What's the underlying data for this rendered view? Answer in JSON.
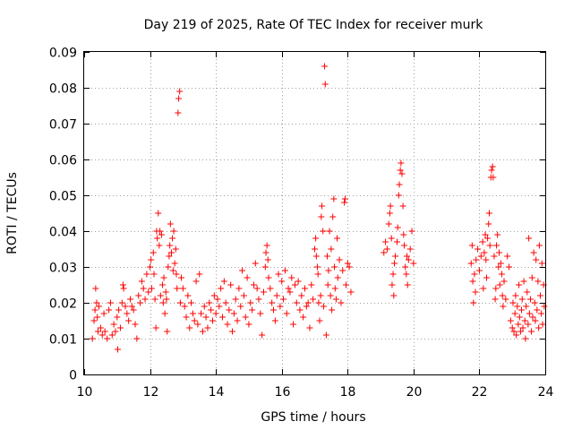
{
  "chart_data": {
    "type": "scatter",
    "title": "Day 219 of 2025, Rate Of TEC Index for receiver murk",
    "xlabel": "GPS time / hours",
    "ylabel": "ROTI / TECUs",
    "xlim": [
      10,
      24
    ],
    "ylim": [
      0,
      0.09
    ],
    "xticks": [
      10,
      12,
      14,
      16,
      18,
      20,
      22,
      24
    ],
    "xtick_labels": [
      "10",
      "12",
      "14",
      "16",
      "18",
      "20",
      "22",
      "24"
    ],
    "yticks": [
      0,
      0.01,
      0.02,
      0.03,
      0.04,
      0.05,
      0.06,
      0.07,
      0.08,
      0.09
    ],
    "ytick_labels": [
      "0",
      "0.01",
      "0.02",
      "0.03",
      "0.04",
      "0.05",
      "0.06",
      "0.07",
      "0.08",
      "0.09"
    ],
    "grid": true,
    "marker": "plus",
    "color": "#ff0000",
    "series": [
      {
        "points": [
          [
            10.25,
            0.01
          ],
          [
            10.3,
            0.015
          ],
          [
            10.33,
            0.018
          ],
          [
            10.35,
            0.024
          ],
          [
            10.38,
            0.02
          ],
          [
            10.4,
            0.016
          ],
          [
            10.42,
            0.012
          ],
          [
            10.45,
            0.019
          ],
          [
            10.5,
            0.013
          ],
          [
            10.55,
            0.011
          ],
          [
            10.6,
            0.017
          ],
          [
            10.63,
            0.012
          ],
          [
            10.7,
            0.01
          ],
          [
            10.75,
            0.018
          ],
          [
            10.8,
            0.02
          ],
          [
            10.85,
            0.011
          ],
          [
            10.9,
            0.014
          ],
          [
            10.95,
            0.012
          ],
          [
            11.0,
            0.016
          ],
          [
            11.02,
            0.007
          ],
          [
            11.05,
            0.018
          ],
          [
            11.1,
            0.013
          ],
          [
            11.15,
            0.02
          ],
          [
            11.18,
            0.025
          ],
          [
            11.2,
            0.024
          ],
          [
            11.25,
            0.019
          ],
          [
            11.3,
            0.017
          ],
          [
            11.35,
            0.015
          ],
          [
            11.4,
            0.021
          ],
          [
            11.45,
            0.019
          ],
          [
            11.5,
            0.018
          ],
          [
            11.55,
            0.014
          ],
          [
            11.6,
            0.01
          ],
          [
            11.65,
            0.022
          ],
          [
            11.7,
            0.02
          ],
          [
            11.75,
            0.026
          ],
          [
            11.8,
            0.024
          ],
          [
            11.85,
            0.021
          ],
          [
            11.9,
            0.028
          ],
          [
            11.95,
            0.023
          ],
          [
            12.0,
            0.03
          ],
          [
            12.03,
            0.032
          ],
          [
            12.05,
            0.024
          ],
          [
            12.1,
            0.034
          ],
          [
            12.12,
            0.028
          ],
          [
            12.15,
            0.021
          ],
          [
            12.18,
            0.013
          ],
          [
            12.2,
            0.04
          ],
          [
            12.22,
            0.038
          ],
          [
            12.25,
            0.045
          ],
          [
            12.28,
            0.036
          ],
          [
            12.3,
            0.04
          ],
          [
            12.32,
            0.022
          ],
          [
            12.35,
            0.039
          ],
          [
            12.38,
            0.025
          ],
          [
            12.4,
            0.02
          ],
          [
            12.42,
            0.027
          ],
          [
            12.45,
            0.017
          ],
          [
            12.48,
            0.023
          ],
          [
            12.5,
            0.021
          ],
          [
            12.52,
            0.012
          ],
          [
            12.55,
            0.03
          ],
          [
            12.58,
            0.033
          ],
          [
            12.6,
            0.036
          ],
          [
            12.62,
            0.042
          ],
          [
            12.65,
            0.034
          ],
          [
            12.68,
            0.038
          ],
          [
            12.7,
            0.029
          ],
          [
            12.72,
            0.04
          ],
          [
            12.75,
            0.031
          ],
          [
            12.78,
            0.035
          ],
          [
            12.8,
            0.028
          ],
          [
            12.82,
            0.024
          ],
          [
            12.85,
            0.073
          ],
          [
            12.87,
            0.077
          ],
          [
            12.9,
            0.079
          ],
          [
            12.92,
            0.02
          ],
          [
            12.95,
            0.027
          ],
          [
            13.0,
            0.024
          ],
          [
            13.05,
            0.019
          ],
          [
            13.1,
            0.016
          ],
          [
            13.15,
            0.022
          ],
          [
            13.2,
            0.013
          ],
          [
            13.25,
            0.02
          ],
          [
            13.3,
            0.017
          ],
          [
            13.35,
            0.015
          ],
          [
            13.4,
            0.026
          ],
          [
            13.45,
            0.014
          ],
          [
            13.5,
            0.028
          ],
          [
            13.55,
            0.017
          ],
          [
            13.6,
            0.012
          ],
          [
            13.65,
            0.019
          ],
          [
            13.7,
            0.016
          ],
          [
            13.75,
            0.013
          ],
          [
            13.8,
            0.02
          ],
          [
            13.85,
            0.018
          ],
          [
            13.9,
            0.015
          ],
          [
            13.95,
            0.022
          ],
          [
            14.0,
            0.017
          ],
          [
            14.05,
            0.021
          ],
          [
            14.1,
            0.019
          ],
          [
            14.15,
            0.024
          ],
          [
            14.2,
            0.016
          ],
          [
            14.25,
            0.026
          ],
          [
            14.3,
            0.02
          ],
          [
            14.35,
            0.014
          ],
          [
            14.4,
            0.018
          ],
          [
            14.45,
            0.025
          ],
          [
            14.5,
            0.012
          ],
          [
            14.55,
            0.017
          ],
          [
            14.6,
            0.021
          ],
          [
            14.65,
            0.015
          ],
          [
            14.7,
            0.024
          ],
          [
            14.75,
            0.019
          ],
          [
            14.8,
            0.029
          ],
          [
            14.85,
            0.022
          ],
          [
            14.9,
            0.016
          ],
          [
            14.95,
            0.027
          ],
          [
            15.0,
            0.014
          ],
          [
            15.05,
            0.02
          ],
          [
            15.1,
            0.018
          ],
          [
            15.15,
            0.025
          ],
          [
            15.2,
            0.031
          ],
          [
            15.25,
            0.024
          ],
          [
            15.3,
            0.021
          ],
          [
            15.35,
            0.017
          ],
          [
            15.4,
            0.011
          ],
          [
            15.45,
            0.023
          ],
          [
            15.5,
            0.03
          ],
          [
            15.52,
            0.034
          ],
          [
            15.55,
            0.036
          ],
          [
            15.58,
            0.032
          ],
          [
            15.6,
            0.027
          ],
          [
            15.65,
            0.024
          ],
          [
            15.7,
            0.02
          ],
          [
            15.75,
            0.018
          ],
          [
            15.8,
            0.015
          ],
          [
            15.85,
            0.022
          ],
          [
            15.9,
            0.028
          ],
          [
            15.95,
            0.019
          ],
          [
            16.0,
            0.026
          ],
          [
            16.05,
            0.021
          ],
          [
            16.1,
            0.029
          ],
          [
            16.15,
            0.017
          ],
          [
            16.2,
            0.024
          ],
          [
            16.25,
            0.023
          ],
          [
            16.3,
            0.027
          ],
          [
            16.35,
            0.014
          ],
          [
            16.4,
            0.025
          ],
          [
            16.45,
            0.02
          ],
          [
            16.5,
            0.026
          ],
          [
            16.55,
            0.018
          ],
          [
            16.6,
            0.022
          ],
          [
            16.65,
            0.016
          ],
          [
            16.7,
            0.024
          ],
          [
            16.75,
            0.019
          ],
          [
            16.8,
            0.02
          ],
          [
            16.85,
            0.013
          ],
          [
            16.9,
            0.025
          ],
          [
            16.95,
            0.021
          ],
          [
            17.0,
            0.035
          ],
          [
            17.03,
            0.038
          ],
          [
            17.05,
            0.033
          ],
          [
            17.08,
            0.03
          ],
          [
            17.1,
            0.028
          ],
          [
            17.12,
            0.02
          ],
          [
            17.15,
            0.015
          ],
          [
            17.18,
            0.022
          ],
          [
            17.2,
            0.044
          ],
          [
            17.22,
            0.047
          ],
          [
            17.25,
            0.04
          ],
          [
            17.27,
            0.019
          ],
          [
            17.3,
            0.086
          ],
          [
            17.32,
            0.081
          ],
          [
            17.35,
            0.011
          ],
          [
            17.38,
            0.033
          ],
          [
            17.4,
            0.025
          ],
          [
            17.42,
            0.029
          ],
          [
            17.45,
            0.04
          ],
          [
            17.48,
            0.022
          ],
          [
            17.5,
            0.035
          ],
          [
            17.52,
            0.018
          ],
          [
            17.55,
            0.044
          ],
          [
            17.58,
            0.049
          ],
          [
            17.6,
            0.03
          ],
          [
            17.62,
            0.024
          ],
          [
            17.65,
            0.021
          ],
          [
            17.68,
            0.038
          ],
          [
            17.7,
            0.027
          ],
          [
            17.75,
            0.032
          ],
          [
            17.8,
            0.02
          ],
          [
            17.85,
            0.029
          ],
          [
            17.9,
            0.048
          ],
          [
            17.92,
            0.049
          ],
          [
            17.95,
            0.025
          ],
          [
            18.0,
            0.031
          ],
          [
            18.05,
            0.03
          ],
          [
            18.1,
            0.023
          ],
          [
            19.1,
            0.034
          ],
          [
            19.15,
            0.037
          ],
          [
            19.2,
            0.035
          ],
          [
            19.25,
            0.042
          ],
          [
            19.28,
            0.045
          ],
          [
            19.3,
            0.047
          ],
          [
            19.33,
            0.038
          ],
          [
            19.35,
            0.025
          ],
          [
            19.38,
            0.028
          ],
          [
            19.4,
            0.022
          ],
          [
            19.42,
            0.031
          ],
          [
            19.45,
            0.033
          ],
          [
            19.5,
            0.037
          ],
          [
            19.52,
            0.041
          ],
          [
            19.55,
            0.05
          ],
          [
            19.57,
            0.053
          ],
          [
            19.6,
            0.057
          ],
          [
            19.62,
            0.059
          ],
          [
            19.65,
            0.056
          ],
          [
            19.68,
            0.047
          ],
          [
            19.7,
            0.039
          ],
          [
            19.72,
            0.036
          ],
          [
            19.75,
            0.03
          ],
          [
            19.78,
            0.028
          ],
          [
            19.8,
            0.033
          ],
          [
            19.82,
            0.025
          ],
          [
            19.85,
            0.032
          ],
          [
            19.9,
            0.035
          ],
          [
            19.95,
            0.04
          ],
          [
            20.0,
            0.031
          ],
          [
            21.75,
            0.031
          ],
          [
            21.78,
            0.036
          ],
          [
            21.8,
            0.026
          ],
          [
            21.82,
            0.02
          ],
          [
            21.85,
            0.028
          ],
          [
            21.88,
            0.023
          ],
          [
            21.9,
            0.032
          ],
          [
            21.95,
            0.035
          ],
          [
            22.0,
            0.029
          ],
          [
            22.05,
            0.033
          ],
          [
            22.1,
            0.037
          ],
          [
            22.12,
            0.024
          ],
          [
            22.15,
            0.034
          ],
          [
            22.18,
            0.039
          ],
          [
            22.2,
            0.032
          ],
          [
            22.22,
            0.027
          ],
          [
            22.25,
            0.038
          ],
          [
            22.28,
            0.042
          ],
          [
            22.3,
            0.045
          ],
          [
            22.32,
            0.036
          ],
          [
            22.35,
            0.055
          ],
          [
            22.37,
            0.057
          ],
          [
            22.4,
            0.058
          ],
          [
            22.42,
            0.055
          ],
          [
            22.45,
            0.033
          ],
          [
            22.48,
            0.021
          ],
          [
            22.5,
            0.024
          ],
          [
            22.52,
            0.036
          ],
          [
            22.55,
            0.039
          ],
          [
            22.58,
            0.03
          ],
          [
            22.6,
            0.034
          ],
          [
            22.62,
            0.025
          ],
          [
            22.65,
            0.031
          ],
          [
            22.68,
            0.028
          ],
          [
            22.7,
            0.022
          ],
          [
            22.72,
            0.019
          ],
          [
            22.75,
            0.026
          ],
          [
            22.8,
            0.021
          ],
          [
            22.85,
            0.033
          ],
          [
            22.9,
            0.03
          ],
          [
            22.95,
            0.015
          ],
          [
            23.0,
            0.013
          ],
          [
            23.02,
            0.02
          ],
          [
            23.05,
            0.012
          ],
          [
            23.08,
            0.017
          ],
          [
            23.1,
            0.022
          ],
          [
            23.12,
            0.011
          ],
          [
            23.15,
            0.019
          ],
          [
            23.18,
            0.014
          ],
          [
            23.2,
            0.025
          ],
          [
            23.22,
            0.016
          ],
          [
            23.25,
            0.012
          ],
          [
            23.28,
            0.018
          ],
          [
            23.3,
            0.021
          ],
          [
            23.32,
            0.013
          ],
          [
            23.35,
            0.026
          ],
          [
            23.38,
            0.015
          ],
          [
            23.4,
            0.01
          ],
          [
            23.42,
            0.019
          ],
          [
            23.45,
            0.023
          ],
          [
            23.48,
            0.014
          ],
          [
            23.5,
            0.038
          ],
          [
            23.52,
            0.017
          ],
          [
            23.55,
            0.021
          ],
          [
            23.58,
            0.012
          ],
          [
            23.6,
            0.027
          ],
          [
            23.62,
            0.016
          ],
          [
            23.65,
            0.034
          ],
          [
            23.68,
            0.02
          ],
          [
            23.7,
            0.015
          ],
          [
            23.72,
            0.032
          ],
          [
            23.75,
            0.018
          ],
          [
            23.78,
            0.026
          ],
          [
            23.8,
            0.013
          ],
          [
            23.82,
            0.036
          ],
          [
            23.85,
            0.022
          ],
          [
            23.88,
            0.017
          ],
          [
            23.9,
            0.031
          ],
          [
            23.92,
            0.014
          ],
          [
            23.95,
            0.025
          ],
          [
            23.97,
            0.019
          ]
        ]
      }
    ]
  }
}
